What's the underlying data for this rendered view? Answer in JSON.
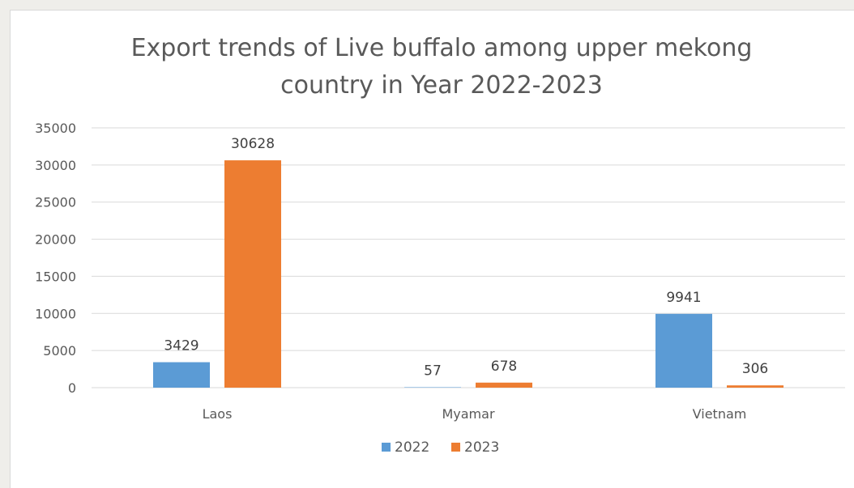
{
  "chart_data": {
    "type": "bar",
    "title": "Export trends of Live buffalo among upper mekong country in Year 2022-2023",
    "title_lines": [
      "Export trends of Live buffalo among upper mekong",
      "country in Year 2022-2023"
    ],
    "categories": [
      "Laos",
      "Myamar",
      "Vietnam"
    ],
    "series": [
      {
        "name": "2022",
        "values": [
          3429,
          57,
          9941
        ],
        "color": "#5b9bd5"
      },
      {
        "name": "2023",
        "values": [
          30628,
          678,
          306
        ],
        "color": "#ed7d31"
      }
    ],
    "xlabel": "",
    "ylabel": "",
    "ylim": [
      0,
      35000
    ],
    "yticks": [
      "0",
      "5000",
      "10000",
      "15000",
      "20000",
      "25000",
      "30000",
      "35000"
    ],
    "grid": true,
    "legend_position": "bottom",
    "data_labels": true
  }
}
